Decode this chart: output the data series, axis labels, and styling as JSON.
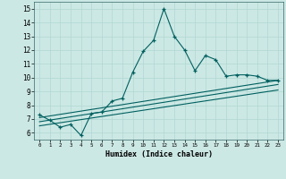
{
  "xlabel": "Humidex (Indice chaleur)",
  "background_color": "#cce8e4",
  "grid_color": "#b0d8d4",
  "line_color": "#006060",
  "xlim": [
    -0.5,
    23.5
  ],
  "ylim": [
    5.5,
    15.5
  ],
  "xticks": [
    0,
    1,
    2,
    3,
    4,
    5,
    6,
    7,
    8,
    9,
    10,
    11,
    12,
    13,
    14,
    15,
    16,
    17,
    18,
    19,
    20,
    21,
    22,
    23
  ],
  "yticks": [
    6,
    7,
    8,
    9,
    10,
    11,
    12,
    13,
    14,
    15
  ],
  "main_x": [
    0,
    1,
    2,
    3,
    4,
    5,
    6,
    7,
    8,
    9,
    10,
    11,
    12,
    13,
    14,
    15,
    16,
    17,
    18,
    19,
    20,
    21,
    22,
    23
  ],
  "main_y": [
    7.3,
    6.9,
    6.4,
    6.6,
    5.8,
    7.4,
    7.5,
    8.3,
    8.5,
    10.4,
    11.9,
    12.7,
    15.0,
    13.0,
    12.0,
    10.5,
    11.6,
    11.3,
    10.1,
    10.2,
    10.2,
    10.1,
    9.8,
    9.8
  ],
  "line1_x": [
    0,
    23
  ],
  "line1_y": [
    7.1,
    9.8
  ],
  "line2_x": [
    0,
    23
  ],
  "line2_y": [
    6.8,
    9.5
  ],
  "line3_x": [
    0,
    23
  ],
  "line3_y": [
    6.5,
    9.1
  ]
}
